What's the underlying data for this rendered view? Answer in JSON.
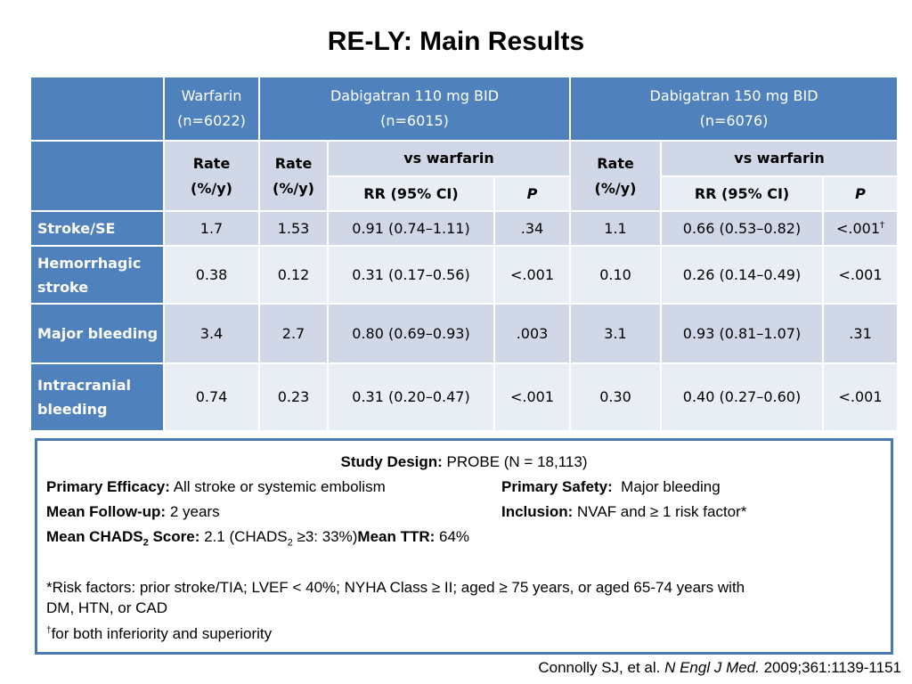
{
  "title": "RE-LY: Main Results",
  "table": {
    "group_headers": {
      "warfarin_name": "Warfarin",
      "warfarin_n": "(n=6022)",
      "dabi110_name": "Dabigatran 110 mg BID",
      "dabi110_n": "(n=6015)",
      "dabi150_name": "Dabigatran 150 mg BID",
      "dabi150_n": "(n=6076)"
    },
    "sub_headers": {
      "rate_line1": "Rate",
      "rate_line2": "(%/y)",
      "vs_warfarin": "vs warfarin",
      "rr": "RR (95% CI)",
      "p": "P"
    },
    "rows": [
      {
        "label": "Stroke/SE",
        "warfarin_rate": "1.7",
        "d110_rate": "1.53",
        "d110_rr": "0.91 (0.74–1.11)",
        "d110_p": ".34",
        "d150_rate": "1.1",
        "d150_rr": "0.66 (0.53–0.82)",
        "d150_p": "<.001",
        "d150_p_sup": "†"
      },
      {
        "label": "Hemorrhagic stroke",
        "warfarin_rate": "0.38",
        "d110_rate": "0.12",
        "d110_rr": "0.31 (0.17–0.56)",
        "d110_p": "<.001",
        "d150_rate": "0.10",
        "d150_rr": "0.26 (0.14–0.49)",
        "d150_p": "<.001"
      },
      {
        "label": "Major bleeding",
        "warfarin_rate": "3.4",
        "d110_rate": "2.7",
        "d110_rr": "0.80 (0.69–0.93)",
        "d110_p": ".003",
        "d150_rate": "3.1",
        "d150_rr": "0.93 (0.81–1.07)",
        "d150_p": ".31"
      },
      {
        "label": "Intracranial bleeding",
        "warfarin_rate": "0.74",
        "d110_rate": "0.23",
        "d110_rr": "0.31 (0.20–0.47)",
        "d110_p": "<.001",
        "d150_rate": "0.30",
        "d150_rr": "0.40 (0.27–0.60)",
        "d150_p": "<.001"
      }
    ]
  },
  "design_box": {
    "study_design_label": "Study Design:",
    "study_design_value": " PROBE (N = 18,113)",
    "primary_efficacy_label": "Primary Efficacy:",
    "primary_efficacy_value": " All stroke or systemic embolism",
    "primary_safety_label": "Primary Safety:",
    "primary_safety_value": "  Major bleeding",
    "followup_label": "Mean Follow-up:",
    "followup_value": " 2 years",
    "inclusion_label": "Inclusion:",
    "inclusion_value": " NVAF and ≥ 1 risk factor*",
    "chads_label": "Mean CHADS",
    "chads_sub": "2",
    "chads_label_end": " Score:",
    "chads_value_a": " 2.1 (CHADS",
    "chads_value_sub": "2",
    "chads_value_b": " ≥3: 33%)",
    "ttr_label": "Mean TTR:",
    "ttr_value": " 64%",
    "risk_factors_line1": "*Risk factors: prior stroke/TIA; LVEF < 40%; NYHA Class ≥ II; aged ≥ 75 years, or aged 65-74 years with",
    "risk_factors_line2": "DM, HTN, or CAD",
    "dagger_mark": "†",
    "dagger_note": "for both inferiority and superiority"
  },
  "citation": {
    "authors": "Connolly SJ, et al. ",
    "journal": "N Engl J Med.",
    "details": " 2009;361:1139-1151"
  }
}
